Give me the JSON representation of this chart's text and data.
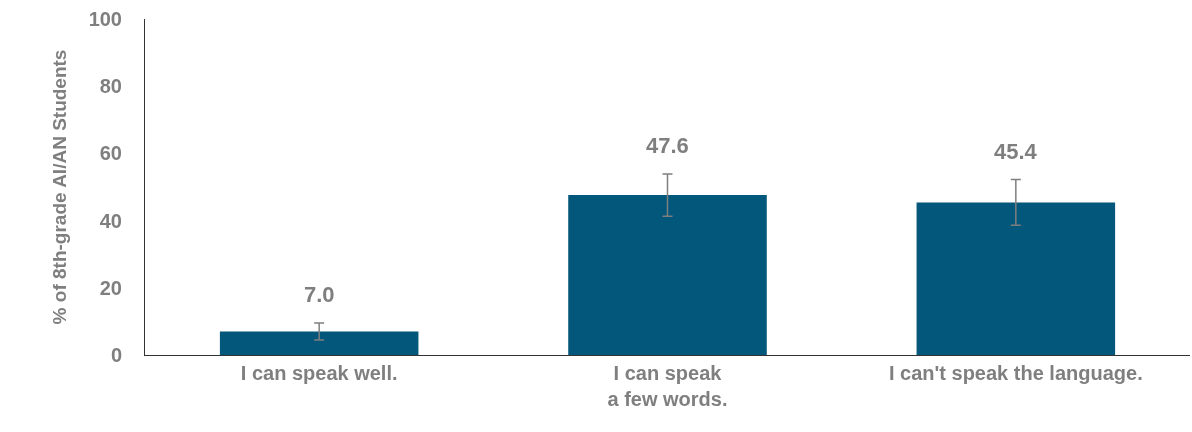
{
  "chart_data": {
    "type": "bar",
    "ylabel": "% of 8th-grade AI/AN Students",
    "categories": [
      "I can speak well.",
      "I can speak\na few words.",
      "I can't speak the language."
    ],
    "values": [
      7.0,
      47.6,
      45.4
    ],
    "color": "#03577a",
    "errors": [
      2.5,
      6.3,
      6.8
    ],
    "value_labels": [
      "7.0",
      "47.6",
      "45.4"
    ],
    "ylim": [
      0,
      100
    ],
    "yticks": [
      0,
      20,
      40,
      60,
      80,
      100
    ],
    "grid": false,
    "legend": false
  }
}
